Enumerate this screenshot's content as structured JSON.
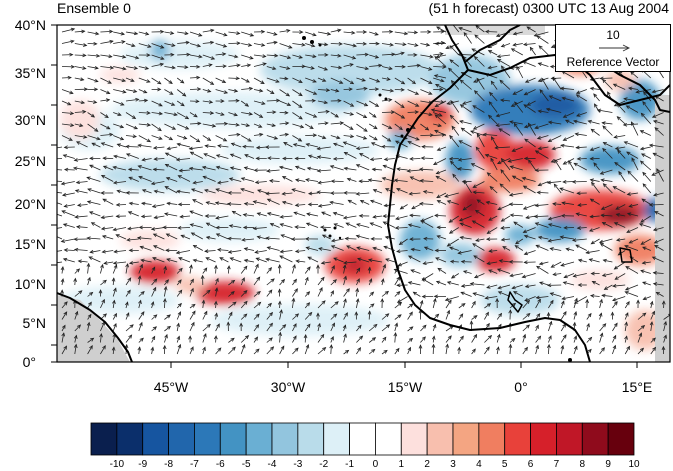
{
  "title_left": "Ensemble 0",
  "title_right": "(51 h forecast) 0300 UTC 13 Aug 2004",
  "lat_labels": [
    "40°N",
    "35°N",
    "30°N",
    "25°N",
    "20°N",
    "15°N",
    "10°N",
    "5°N",
    "0°"
  ],
  "lon_labels": [
    "45°W",
    "30°W",
    "15°W",
    "0°",
    "15°E"
  ],
  "reference_vector": {
    "magnitude": "10",
    "label": "Reference Vector"
  },
  "colorbar": {
    "labels": [
      "-10",
      "-9",
      "-8",
      "-7",
      "-6",
      "-5",
      "-4",
      "-3",
      "-2",
      "-1",
      "0",
      "1",
      "2",
      "3",
      "4",
      "5",
      "6",
      "7",
      "8",
      "9",
      "10"
    ],
    "colors": [
      "#0a1f4e",
      "#0b2f6b",
      "#1655a0",
      "#2166ac",
      "#2c78b8",
      "#4393c3",
      "#6aafd3",
      "#92c5de",
      "#b9dcea",
      "#ddf0f7",
      "#ffffff",
      "#ffffff",
      "#fde0dd",
      "#f8bfae",
      "#f4a582",
      "#f07e60",
      "#e8413a",
      "#d6202a",
      "#c01727",
      "#8f0b1c",
      "#67000d"
    ]
  }
}
